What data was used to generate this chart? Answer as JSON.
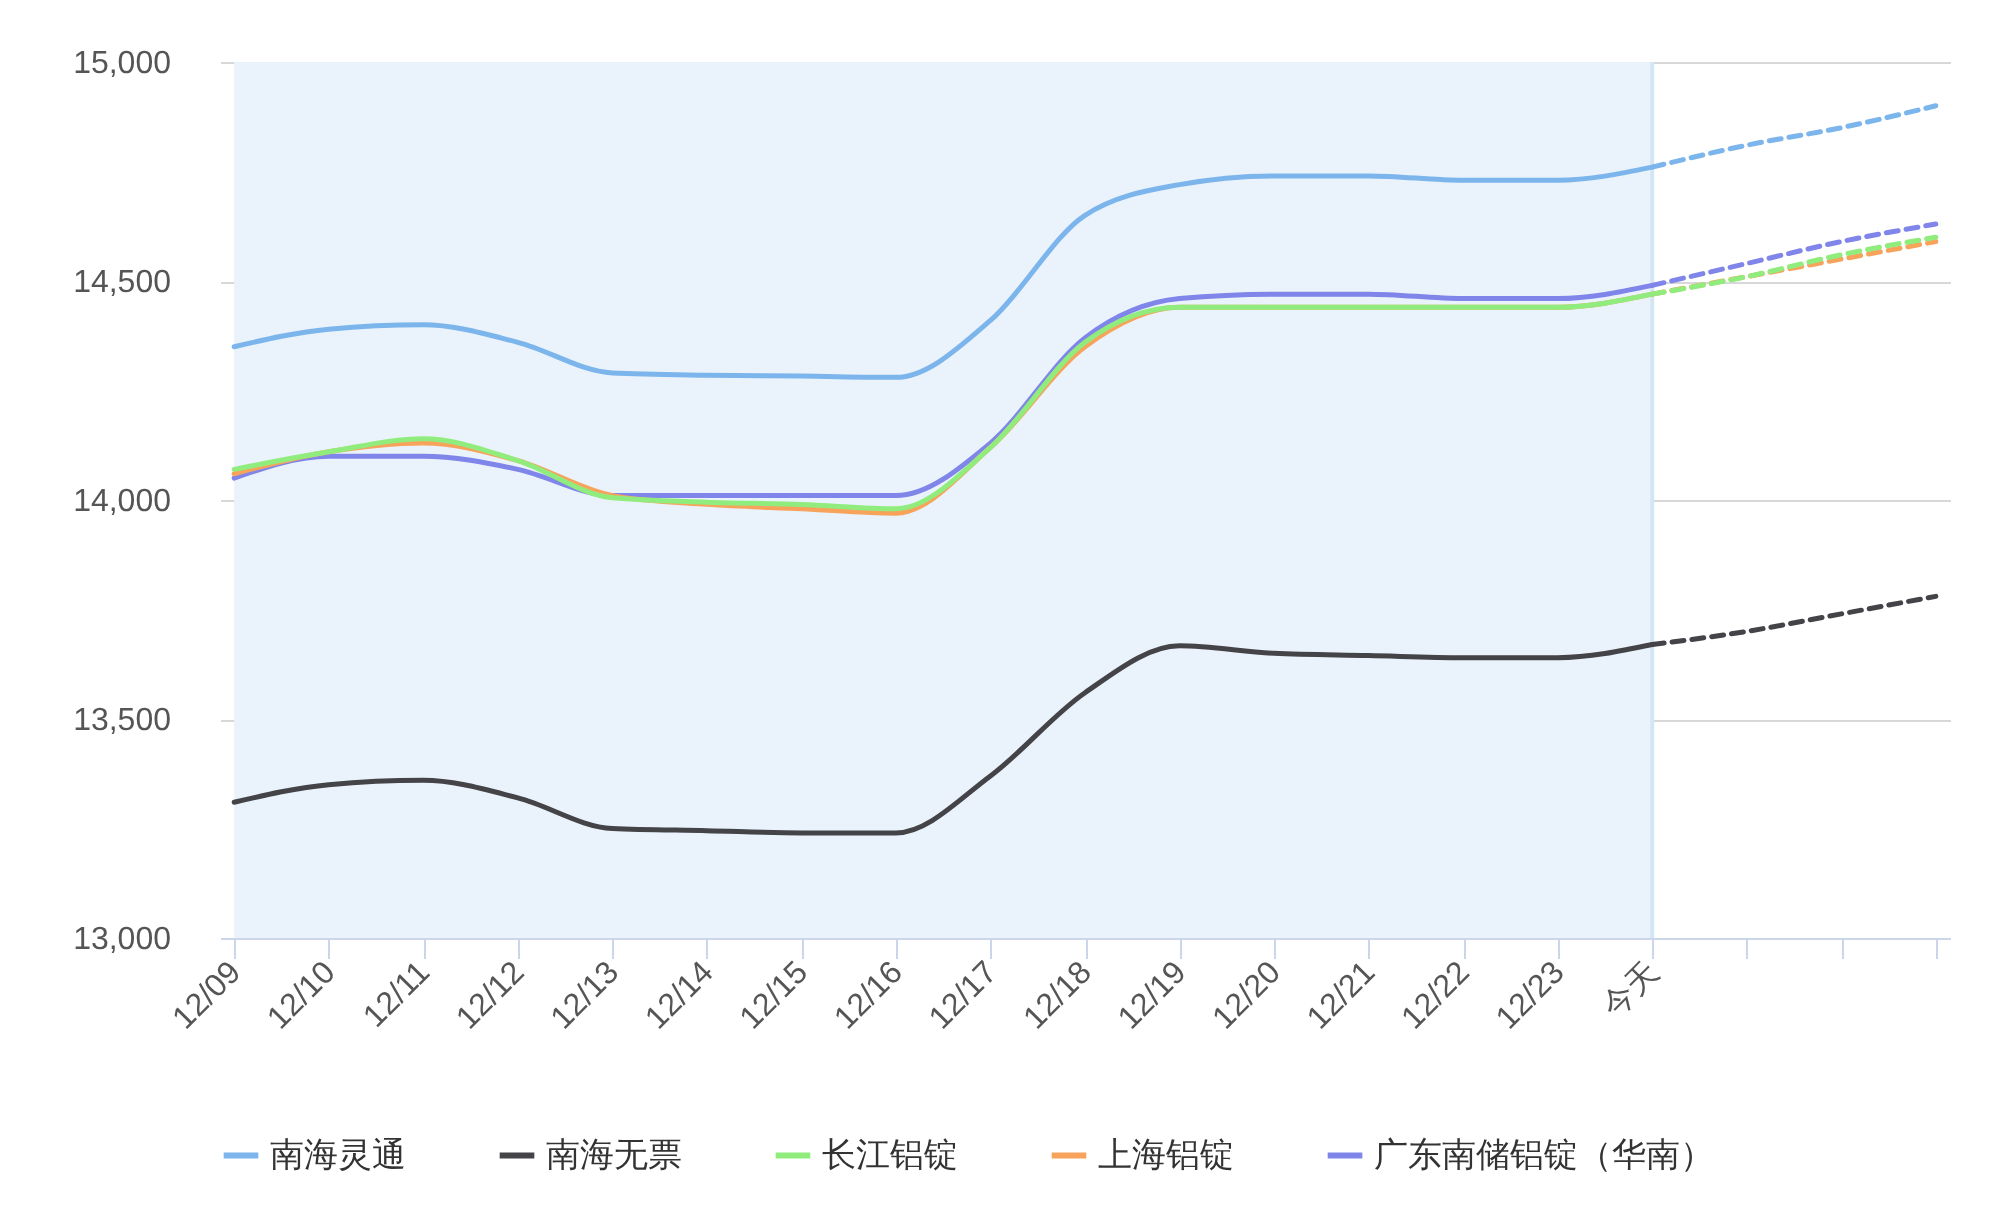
{
  "chart_data": {
    "type": "line",
    "categories": [
      "12/09",
      "12/10",
      "12/11",
      "12/12",
      "12/13",
      "12/14",
      "12/15",
      "12/16",
      "12/17",
      "12/18",
      "12/19",
      "12/20",
      "12/21",
      "12/22",
      "12/23",
      "今天",
      null,
      null,
      null
    ],
    "series": [
      {
        "name": "南海灵通",
        "color": "#7cb5ec",
        "line_style": "solid",
        "values": [
          14350,
          14390,
          14400,
          14360,
          14290,
          14285,
          14283,
          14280,
          14410,
          14650,
          14720,
          14740,
          14740,
          14730,
          14730,
          14760,
          null,
          null,
          null
        ]
      },
      {
        "name": "南海无票",
        "color": "#434348",
        "line_style": "solid",
        "values": [
          13310,
          13350,
          13360,
          13320,
          13250,
          13245,
          13240,
          13240,
          13370,
          13560,
          13667,
          13650,
          13645,
          13640,
          13640,
          13670,
          null,
          null,
          null
        ]
      },
      {
        "name": "长江铝锭",
        "color": "#90ed7d",
        "line_style": "solid",
        "values": [
          14070,
          14110,
          14140,
          14090,
          14005,
          13995,
          13990,
          13980,
          14120,
          14360,
          14440,
          14440,
          14440,
          14440,
          14440,
          14470,
          null,
          null,
          null
        ]
      },
      {
        "name": "上海铝锭",
        "color": "#f7a35c",
        "line_style": "solid",
        "values": [
          14060,
          14110,
          14130,
          14090,
          14010,
          13990,
          13980,
          13970,
          14120,
          14350,
          14440,
          14440,
          14440,
          14440,
          14440,
          14470,
          null,
          null,
          null
        ]
      },
      {
        "name": "广东南储铝锭（华南）",
        "color": "#8085e9",
        "line_style": "solid",
        "values": [
          14050,
          14100,
          14100,
          14070,
          14010,
          14010,
          14010,
          14010,
          14130,
          14370,
          14460,
          14470,
          14470,
          14460,
          14460,
          14490,
          null,
          null,
          null
        ]
      },
      {
        "color": "#7cb5ec",
        "line_style": "dashed",
        "values": [
          null,
          null,
          null,
          null,
          null,
          null,
          null,
          null,
          null,
          null,
          null,
          null,
          null,
          null,
          null,
          14760,
          14810,
          14850,
          14900
        ]
      },
      {
        "color": "#434348",
        "line_style": "dashed",
        "values": [
          null,
          null,
          null,
          null,
          null,
          null,
          null,
          null,
          null,
          null,
          null,
          null,
          null,
          null,
          null,
          13670,
          13700,
          13740,
          13780
        ]
      },
      {
        "color": "#90ed7d",
        "line_style": "dashed",
        "values": [
          null,
          null,
          null,
          null,
          null,
          null,
          null,
          null,
          null,
          null,
          null,
          null,
          null,
          null,
          null,
          14470,
          14510,
          14560,
          14600
        ]
      },
      {
        "color": "#f7a35c",
        "line_style": "dashed",
        "values": [
          null,
          null,
          null,
          null,
          null,
          null,
          null,
          null,
          null,
          null,
          null,
          null,
          null,
          null,
          null,
          14470,
          14510,
          14550,
          14590
        ]
      },
      {
        "color": "#8085e9",
        "line_style": "dashed",
        "values": [
          null,
          null,
          null,
          null,
          null,
          null,
          null,
          null,
          null,
          null,
          null,
          null,
          null,
          null,
          null,
          14490,
          14540,
          14590,
          14630
        ]
      }
    ],
    "ylim": [
      13000,
      15000
    ],
    "yticks": [
      {
        "value": 13000,
        "label": "13,000"
      },
      {
        "value": 13500,
        "label": "13,500"
      },
      {
        "value": 14000,
        "label": "14,000"
      },
      {
        "value": 14500,
        "label": "14,500"
      },
      {
        "value": 15000,
        "label": "15,000"
      }
    ],
    "bands": [
      {
        "axis": "x",
        "from": "12/09",
        "to": "今天",
        "color": "#eaf3fb"
      }
    ],
    "ref_lines": [
      {
        "axis": "x",
        "value": "今天",
        "color": "#d4e6f3"
      }
    ],
    "grid": "y",
    "legend": "bottom",
    "marker": "none"
  }
}
